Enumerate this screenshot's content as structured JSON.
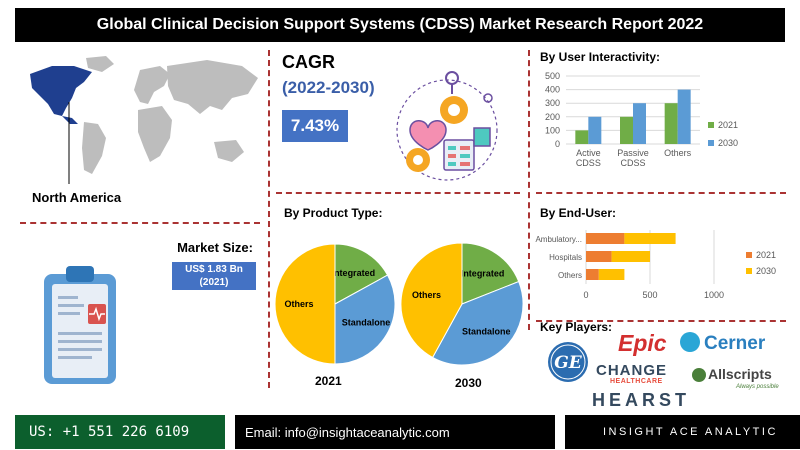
{
  "title": "Global Clinical Decision Support Systems (CDSS) Market Research Report 2022",
  "region": "North America",
  "cagr": {
    "label": "CAGR",
    "period": "(2022-2030)",
    "value": "7.43%"
  },
  "market_size": {
    "label": "Market Size:",
    "value": "US$ 1.83 Bn",
    "year": "(2021)"
  },
  "sections": {
    "user_interactivity": "By User Interactivity:",
    "product_type": "By Product Type:",
    "end_user": "By  End-User:",
    "key_players": "Key Players:"
  },
  "key_players": [
    "Epic",
    "Cerner",
    "GE",
    "CHANGE",
    "HEALTHCARE",
    "Allscripts",
    "Allscripts Always possible",
    "HEARST"
  ],
  "footer": {
    "phone": "US: +1 551 226 6109",
    "email": "Email: info@insightaceanalytic.com",
    "brand": "INSIGHT ACE ANALYTIC"
  },
  "colors": {
    "s2021": "#70ad47",
    "s2030": "#5b9bd5",
    "e2021": "#ed7d31",
    "e2030": "#ffc000",
    "accent": "#4472c4",
    "footer_green": "#0c5f2d"
  },
  "chart_data": [
    {
      "type": "bar",
      "title": "By User Interactivity:",
      "categories": [
        "Active CDSS",
        "Passive CDSS",
        "Others"
      ],
      "series": [
        {
          "name": "2021",
          "values": [
            100,
            200,
            300
          ]
        },
        {
          "name": "2030",
          "values": [
            200,
            300,
            400
          ]
        }
      ],
      "ylim": [
        0,
        500
      ],
      "yticks": [
        "0",
        "100",
        "200",
        "300",
        "400",
        "500"
      ],
      "legend": "right"
    },
    {
      "type": "pie",
      "title": "2021",
      "labels": [
        "Integrated",
        "Standalone",
        "Others"
      ],
      "values": [
        17,
        33,
        50
      ],
      "colors": [
        "#70ad47",
        "#5b9bd5",
        "#ffc000"
      ]
    },
    {
      "type": "pie",
      "title": "2030",
      "labels": [
        "Integrated",
        "Standalone",
        "Others"
      ],
      "values": [
        19,
        39,
        42
      ],
      "colors": [
        "#70ad47",
        "#5b9bd5",
        "#ffc000"
      ]
    },
    {
      "type": "bar",
      "orientation": "horizontal",
      "stacked": true,
      "title": "By  End-User:",
      "categories": [
        "Ambulatory...",
        "Hospitals",
        "Others"
      ],
      "series": [
        {
          "name": "2021",
          "values": [
            300,
            200,
            100
          ]
        },
        {
          "name": "2030",
          "values": [
            400,
            300,
            200
          ]
        }
      ],
      "xlim": [
        0,
        1000
      ],
      "xticks": [
        "0",
        "500",
        "1000"
      ],
      "legend": "right"
    }
  ]
}
